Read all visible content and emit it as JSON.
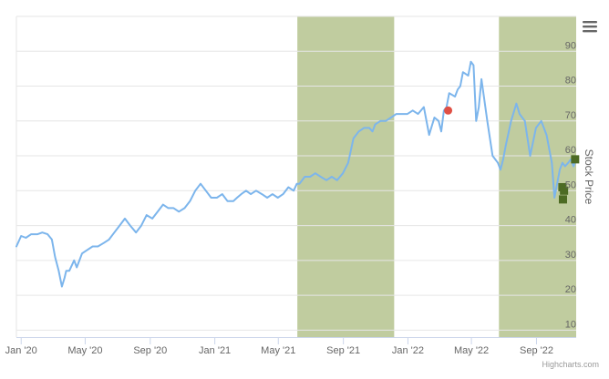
{
  "menu_icon": "hamburger-menu-icon",
  "credit": "Highcharts.com",
  "chart_data": {
    "type": "line",
    "xlabel": "",
    "ylabel": "Stock Price",
    "xlim": [
      "2019-12-23",
      "2022-11-15"
    ],
    "ylim": [
      8,
      100
    ],
    "grid": true,
    "x_ticks": [
      {
        "date": "2020-01-01",
        "label": "Jan '20"
      },
      {
        "date": "2020-05-01",
        "label": "May '20"
      },
      {
        "date": "2020-09-01",
        "label": "Sep '20"
      },
      {
        "date": "2021-01-01",
        "label": "Jan '21"
      },
      {
        "date": "2021-05-01",
        "label": "May '21"
      },
      {
        "date": "2021-09-01",
        "label": "Sep '21"
      },
      {
        "date": "2022-01-01",
        "label": "Jan '22"
      },
      {
        "date": "2022-05-01",
        "label": "May '22"
      },
      {
        "date": "2022-09-01",
        "label": "Sep '22"
      }
    ],
    "y_ticks": [
      10,
      20,
      30,
      40,
      50,
      60,
      70,
      80,
      90
    ],
    "bands": [
      {
        "from": "2021-06-06",
        "to": "2021-12-06",
        "color": "#c0cc9f"
      },
      {
        "from": "2022-06-22",
        "to": "2022-11-15",
        "color": "#c0cc9f"
      }
    ],
    "series": [
      {
        "color": "#7cb5ec",
        "x": [
          "2019-12-23",
          "2020-01-01",
          "2020-01-10",
          "2020-01-20",
          "2020-02-01",
          "2020-02-10",
          "2020-02-20",
          "2020-02-28",
          "2020-03-05",
          "2020-03-12",
          "2020-03-18",
          "2020-03-23",
          "2020-03-26",
          "2020-04-01",
          "2020-04-10",
          "2020-04-15",
          "2020-04-25",
          "2020-05-05",
          "2020-05-15",
          "2020-05-25",
          "2020-06-05",
          "2020-06-15",
          "2020-06-25",
          "2020-07-05",
          "2020-07-15",
          "2020-07-25",
          "2020-08-05",
          "2020-08-15",
          "2020-08-25",
          "2020-09-05",
          "2020-09-15",
          "2020-09-25",
          "2020-10-05",
          "2020-10-15",
          "2020-10-25",
          "2020-11-05",
          "2020-11-15",
          "2020-11-25",
          "2020-12-05",
          "2020-12-15",
          "2020-12-25",
          "2021-01-05",
          "2021-01-15",
          "2021-01-25",
          "2021-02-05",
          "2021-02-12",
          "2021-02-20",
          "2021-03-01",
          "2021-03-10",
          "2021-03-20",
          "2021-03-31",
          "2021-04-10",
          "2021-04-20",
          "2021-04-30",
          "2021-05-10",
          "2021-05-20",
          "2021-05-30",
          "2021-06-05",
          "2021-06-10",
          "2021-06-20",
          "2021-06-30",
          "2021-07-10",
          "2021-07-20",
          "2021-07-31",
          "2021-08-10",
          "2021-08-20",
          "2021-08-31",
          "2021-09-10",
          "2021-09-20",
          "2021-09-30",
          "2021-10-10",
          "2021-10-20",
          "2021-10-26",
          "2021-10-31",
          "2021-11-10",
          "2021-11-20",
          "2021-11-30",
          "2021-12-10",
          "2021-12-20",
          "2021-12-31",
          "2022-01-10",
          "2022-01-20",
          "2022-01-31",
          "2022-02-05",
          "2022-02-10",
          "2022-02-20",
          "2022-02-28",
          "2022-03-05",
          "2022-03-10",
          "2022-03-15",
          "2022-03-20",
          "2022-03-31",
          "2022-04-05",
          "2022-04-10",
          "2022-04-15",
          "2022-04-25",
          "2022-04-30",
          "2022-05-05",
          "2022-05-10",
          "2022-05-15",
          "2022-05-20",
          "2022-05-31",
          "2022-06-10",
          "2022-06-20",
          "2022-06-25",
          "2022-06-30",
          "2022-07-05",
          "2022-07-15",
          "2022-07-25",
          "2022-07-31",
          "2022-08-10",
          "2022-08-20",
          "2022-08-31",
          "2022-09-10",
          "2022-09-20",
          "2022-09-30",
          "2022-10-05",
          "2022-10-10",
          "2022-10-15",
          "2022-10-20",
          "2022-10-25",
          "2022-10-31",
          "2022-11-05",
          "2022-11-10",
          "2022-11-15"
        ],
        "y": [
          34,
          37,
          36.5,
          37.5,
          37.5,
          38,
          37.5,
          36,
          31,
          27,
          22.5,
          25,
          27,
          27,
          30,
          28,
          32,
          33,
          34,
          34,
          35,
          36,
          38,
          40,
          42,
          40,
          38,
          40,
          43,
          42,
          44,
          46,
          45,
          45,
          44,
          45,
          47,
          50,
          52,
          50,
          48,
          48,
          49,
          47,
          47,
          48,
          49,
          50,
          49,
          50,
          49,
          48,
          49,
          48,
          49,
          51,
          50,
          52,
          52,
          54,
          54,
          55,
          54,
          53,
          54,
          53,
          55,
          58,
          65,
          67,
          68,
          68,
          67,
          69,
          70,
          70,
          71,
          72,
          72,
          72,
          73,
          72,
          74,
          70,
          66,
          71,
          70,
          67,
          73,
          74,
          78,
          77,
          79,
          80,
          84,
          83,
          87,
          86,
          70,
          74,
          82,
          70,
          60,
          58,
          56,
          59,
          63,
          70,
          75,
          72,
          70,
          60,
          68,
          70,
          66,
          58,
          48,
          52,
          56,
          58,
          57,
          58,
          59,
          57,
          59
        ]
      }
    ],
    "markers": [
      {
        "shape": "circle",
        "color": "#e05045",
        "x": "2022-03-18",
        "y": 73
      },
      {
        "shape": "square",
        "color": "#4d6b24",
        "x": "2022-10-20",
        "y": 51
      },
      {
        "shape": "square",
        "color": "#4d6b24",
        "x": "2022-10-23",
        "y": 50
      },
      {
        "shape": "square",
        "color": "#4d6b24",
        "x": "2022-10-21",
        "y": 47.5
      },
      {
        "shape": "square",
        "color": "#4d6b24",
        "x": "2022-11-13",
        "y": 59
      }
    ]
  }
}
